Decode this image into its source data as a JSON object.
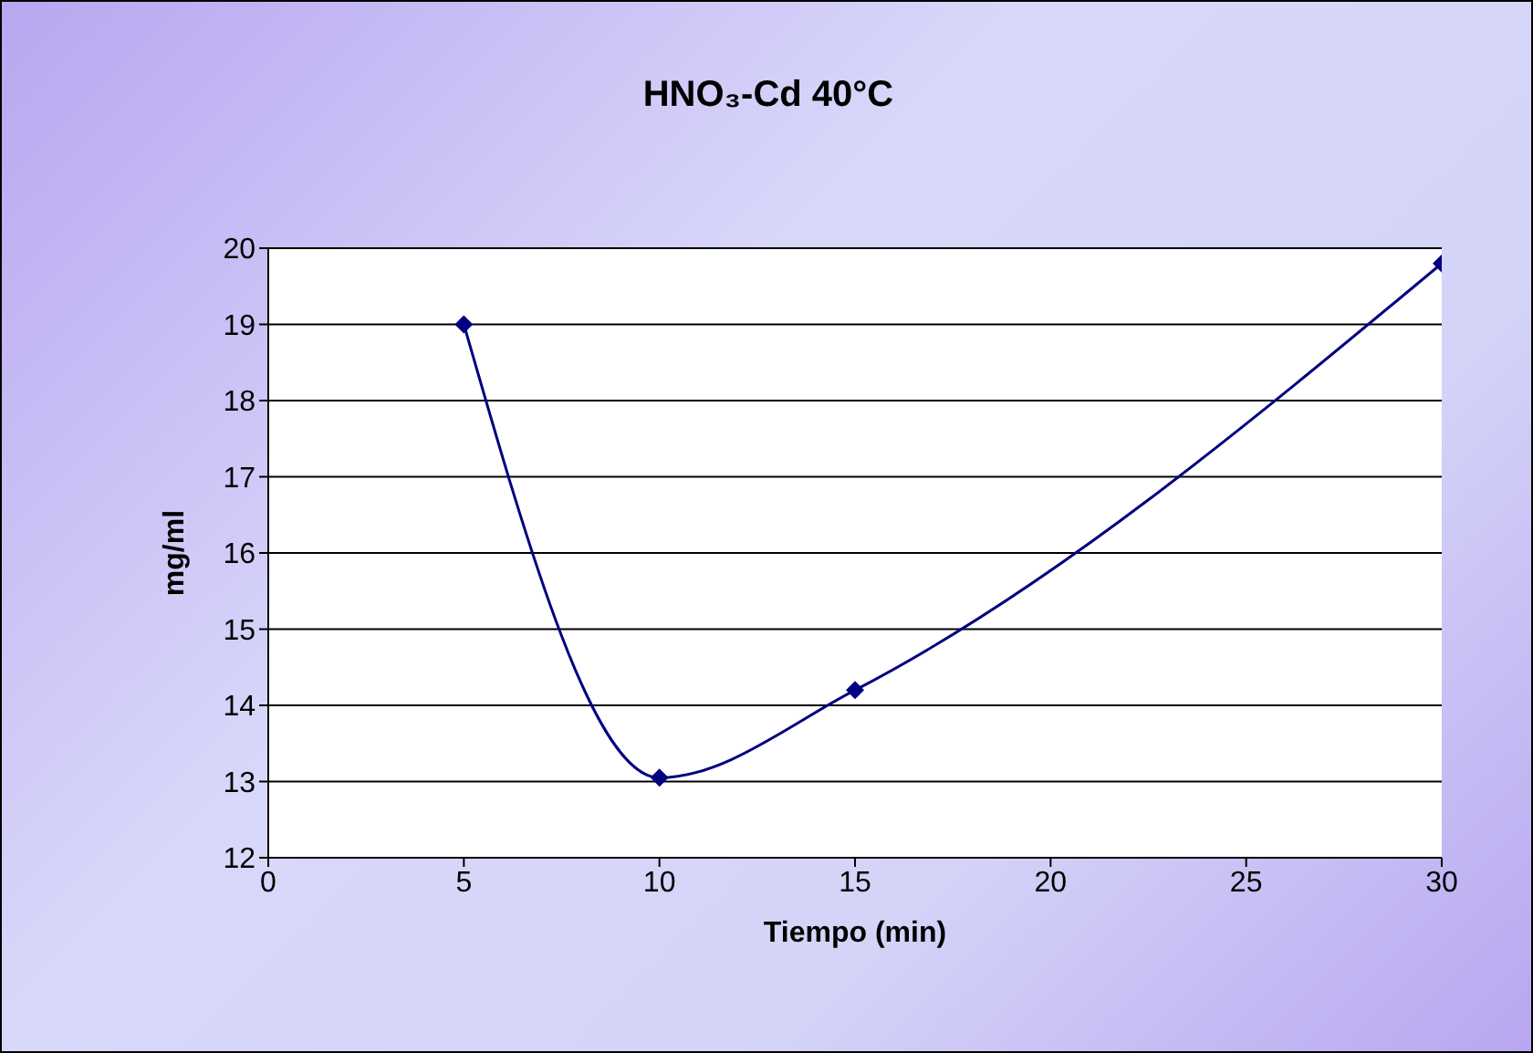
{
  "chart_data": {
    "type": "line",
    "title": "HNO₃-Cd 40°C",
    "xlabel": "Tiempo (min)",
    "ylabel": "mg/ml",
    "x": [
      5,
      10,
      15,
      30
    ],
    "series": [
      {
        "color": "#000080",
        "values": [
          19,
          13.05,
          14.2,
          19.8
        ]
      }
    ],
    "xlim": [
      0,
      30
    ],
    "xticks": [
      0,
      5,
      10,
      15,
      20,
      25,
      30
    ],
    "ylim": [
      12,
      20
    ],
    "yticks": [
      12,
      13,
      14,
      15,
      16,
      17,
      18,
      19,
      20
    ],
    "grid": "y",
    "marker": "diamond",
    "line_style": "solid"
  }
}
